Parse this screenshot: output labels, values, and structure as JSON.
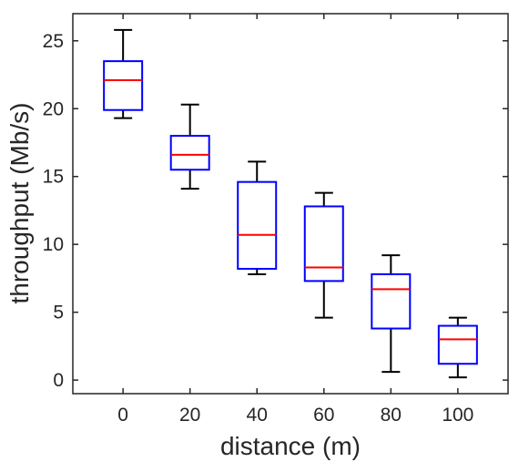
{
  "chart_data": {
    "type": "box",
    "title": "",
    "xlabel": "distance (m)",
    "ylabel": "throughput (Mb/s)",
    "categories": [
      "0",
      "20",
      "40",
      "60",
      "80",
      "100"
    ],
    "yticks": [
      "0",
      "5",
      "10",
      "15",
      "20",
      "25"
    ],
    "ylim": [
      -1,
      27
    ],
    "grid": false,
    "boxes": [
      {
        "category": "0",
        "min": 19.3,
        "q1": 19.9,
        "median": 22.1,
        "q3": 23.5,
        "max": 25.8
      },
      {
        "category": "20",
        "min": 14.1,
        "q1": 15.5,
        "median": 16.6,
        "q3": 18.0,
        "max": 20.3
      },
      {
        "category": "40",
        "min": 7.8,
        "q1": 8.2,
        "median": 10.7,
        "q3": 14.6,
        "max": 16.1
      },
      {
        "category": "60",
        "min": 4.6,
        "q1": 7.3,
        "median": 8.3,
        "q3": 12.8,
        "max": 13.8
      },
      {
        "category": "80",
        "min": 0.6,
        "q1": 3.8,
        "median": 6.7,
        "q3": 7.8,
        "max": 9.2
      },
      {
        "category": "100",
        "min": 0.2,
        "q1": 1.2,
        "median": 3.0,
        "q3": 4.0,
        "max": 4.6
      }
    ],
    "colors": {
      "box": "#0000ff",
      "median": "#ff0000",
      "whisker": "#000000",
      "axis": "#262626"
    }
  }
}
